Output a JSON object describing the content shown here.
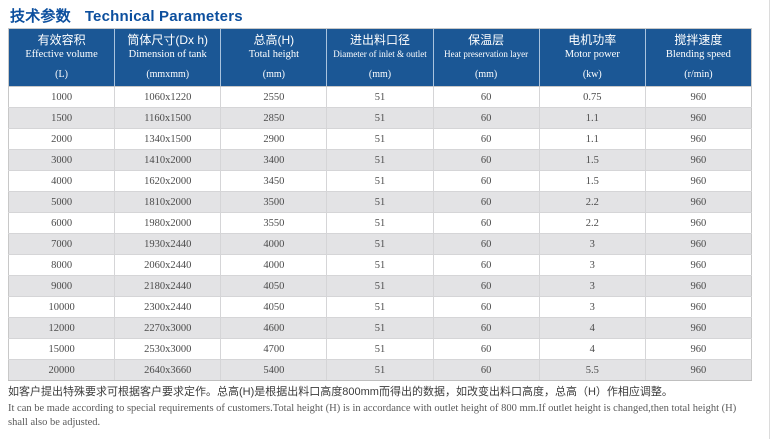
{
  "title": {
    "cn": "技术参数",
    "en": "Technical Parameters"
  },
  "colors": {
    "title_blue": "#0c4f9e",
    "header_bg": "#1b5795",
    "row_alt": "#e3e3e5",
    "cell_text": "#4b4b4b"
  },
  "table": {
    "columns": [
      {
        "cn": "有效容积",
        "en": "Effective volume",
        "unit": "(L)"
      },
      {
        "cn": "筒体尺寸(Dx h)",
        "en": "Dimension of tank",
        "unit": "(mmxmm)"
      },
      {
        "cn": "总高(H)",
        "en": "Total height",
        "unit": "(mm)"
      },
      {
        "cn": "进出料口径",
        "en": "Diameter of inlet & outlet",
        "unit": "(mm)"
      },
      {
        "cn": "保温层",
        "en": "Heat preservation layer",
        "unit": "(mm)"
      },
      {
        "cn": "电机功率",
        "en": "Motor power",
        "unit": "(kw)"
      },
      {
        "cn": "搅拌速度",
        "en": "Blending speed",
        "unit": "(r/min)"
      }
    ],
    "rows": [
      [
        "1000",
        "1060x1220",
        "2550",
        "51",
        "60",
        "0.75",
        "960"
      ],
      [
        "1500",
        "1160x1500",
        "2850",
        "51",
        "60",
        "1.1",
        "960"
      ],
      [
        "2000",
        "1340x1500",
        "2900",
        "51",
        "60",
        "1.1",
        "960"
      ],
      [
        "3000",
        "1410x2000",
        "3400",
        "51",
        "60",
        "1.5",
        "960"
      ],
      [
        "4000",
        "1620x2000",
        "3450",
        "51",
        "60",
        "1.5",
        "960"
      ],
      [
        "5000",
        "1810x2000",
        "3500",
        "51",
        "60",
        "2.2",
        "960"
      ],
      [
        "6000",
        "1980x2000",
        "3550",
        "51",
        "60",
        "2.2",
        "960"
      ],
      [
        "7000",
        "1930x2440",
        "4000",
        "51",
        "60",
        "3",
        "960"
      ],
      [
        "8000",
        "2060x2440",
        "4000",
        "51",
        "60",
        "3",
        "960"
      ],
      [
        "9000",
        "2180x2440",
        "4050",
        "51",
        "60",
        "3",
        "960"
      ],
      [
        "10000",
        "2300x2440",
        "4050",
        "51",
        "60",
        "3",
        "960"
      ],
      [
        "12000",
        "2270x3000",
        "4600",
        "51",
        "60",
        "4",
        "960"
      ],
      [
        "15000",
        "2530x3000",
        "4700",
        "51",
        "60",
        "4",
        "960"
      ],
      [
        "20000",
        "2640x3660",
        "5400",
        "51",
        "60",
        "5.5",
        "960"
      ]
    ]
  },
  "notes": {
    "cn": "如客户提出特殊要求可根据客户要求定作。总高(H)是根据出料口高度800mm而得出的数据，如改变出料口高度，总高（H）作相应调整。",
    "en": "It can be made according to special requirements of customers.Total height (H) is in accordance with outlet height of 800 mm.If outlet height is changed,then total height (H) shall also be adjusted."
  }
}
